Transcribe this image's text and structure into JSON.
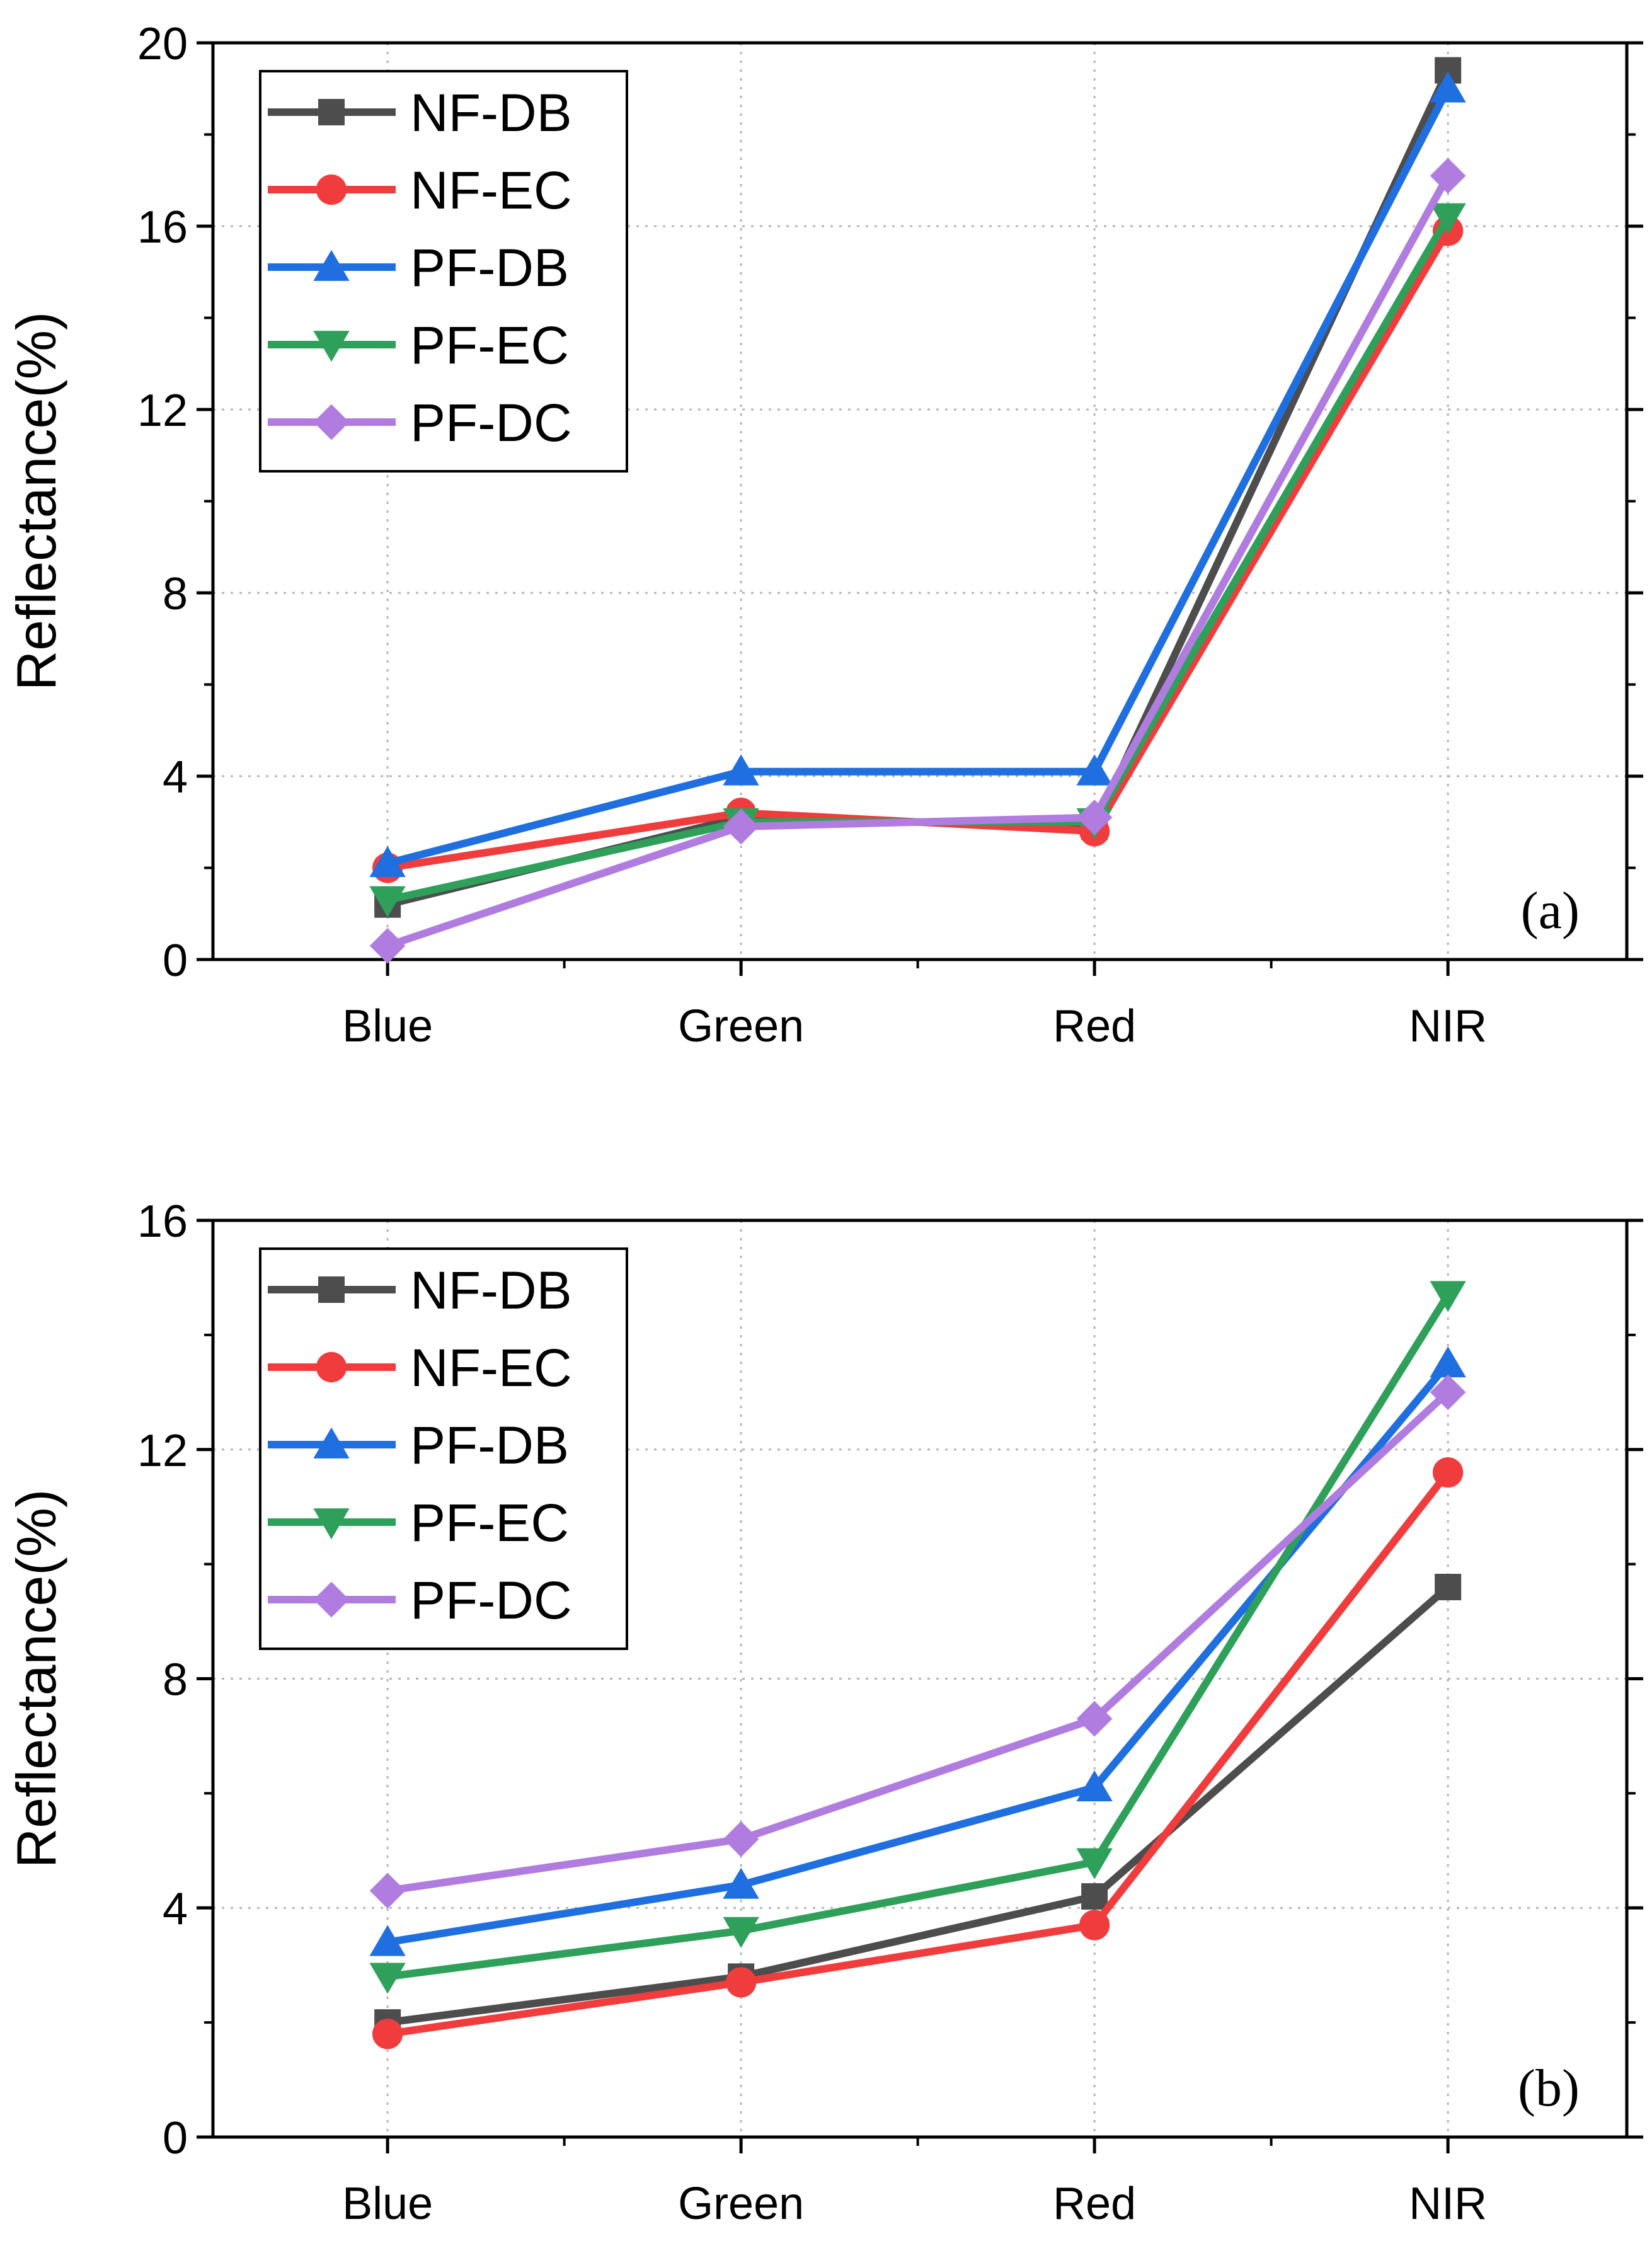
{
  "figure": {
    "chart_data": [
      {
        "type": "line",
        "panel_label": "(a)",
        "ylabel": "Reflectance(%)",
        "xlabel": "",
        "categories": [
          "Blue",
          "Green",
          "Red",
          "NIR"
        ],
        "ylim": [
          0,
          20
        ],
        "yticks": [
          "0",
          "4",
          "8",
          "12",
          "16",
          "20"
        ],
        "grid": true,
        "legend_position": "top-left",
        "series": [
          {
            "name": "NF-DB",
            "color": "#4d4d4d",
            "marker": "square",
            "values": [
              1.2,
              3.1,
              2.9,
              19.4
            ]
          },
          {
            "name": "NF-EC",
            "color": "#f03c3c",
            "marker": "circle",
            "values": [
              2.0,
              3.2,
              2.8,
              15.9
            ]
          },
          {
            "name": "PF-DB",
            "color": "#1f6fe0",
            "marker": "triangle-up",
            "values": [
              2.1,
              4.1,
              4.1,
              19.0
            ]
          },
          {
            "name": "PF-EC",
            "color": "#2ea05a",
            "marker": "triangle-down",
            "values": [
              1.3,
              3.0,
              3.0,
              16.2
            ]
          },
          {
            "name": "PF-DC",
            "color": "#b07ce0",
            "marker": "diamond",
            "values": [
              0.3,
              2.9,
              3.1,
              17.1
            ]
          }
        ]
      },
      {
        "type": "line",
        "panel_label": "(b)",
        "ylabel": "Reflectance(%)",
        "xlabel": "",
        "categories": [
          "Blue",
          "Green",
          "Red",
          "NIR"
        ],
        "ylim": [
          0,
          16
        ],
        "yticks": [
          "0",
          "4",
          "8",
          "12",
          "16"
        ],
        "grid": true,
        "legend_position": "top-left",
        "series": [
          {
            "name": "NF-DB",
            "color": "#4d4d4d",
            "marker": "square",
            "values": [
              2.0,
              2.8,
              4.2,
              9.6
            ]
          },
          {
            "name": "NF-EC",
            "color": "#f03c3c",
            "marker": "circle",
            "values": [
              1.8,
              2.7,
              3.7,
              11.6
            ]
          },
          {
            "name": "PF-DB",
            "color": "#1f6fe0",
            "marker": "triangle-up",
            "values": [
              3.4,
              4.4,
              6.1,
              13.5
            ]
          },
          {
            "name": "PF-EC",
            "color": "#2ea05a",
            "marker": "triangle-down",
            "values": [
              2.8,
              3.6,
              4.8,
              14.7
            ]
          },
          {
            "name": "PF-DC",
            "color": "#b07ce0",
            "marker": "diamond",
            "values": [
              4.3,
              5.2,
              7.3,
              13.0
            ]
          }
        ]
      }
    ]
  }
}
